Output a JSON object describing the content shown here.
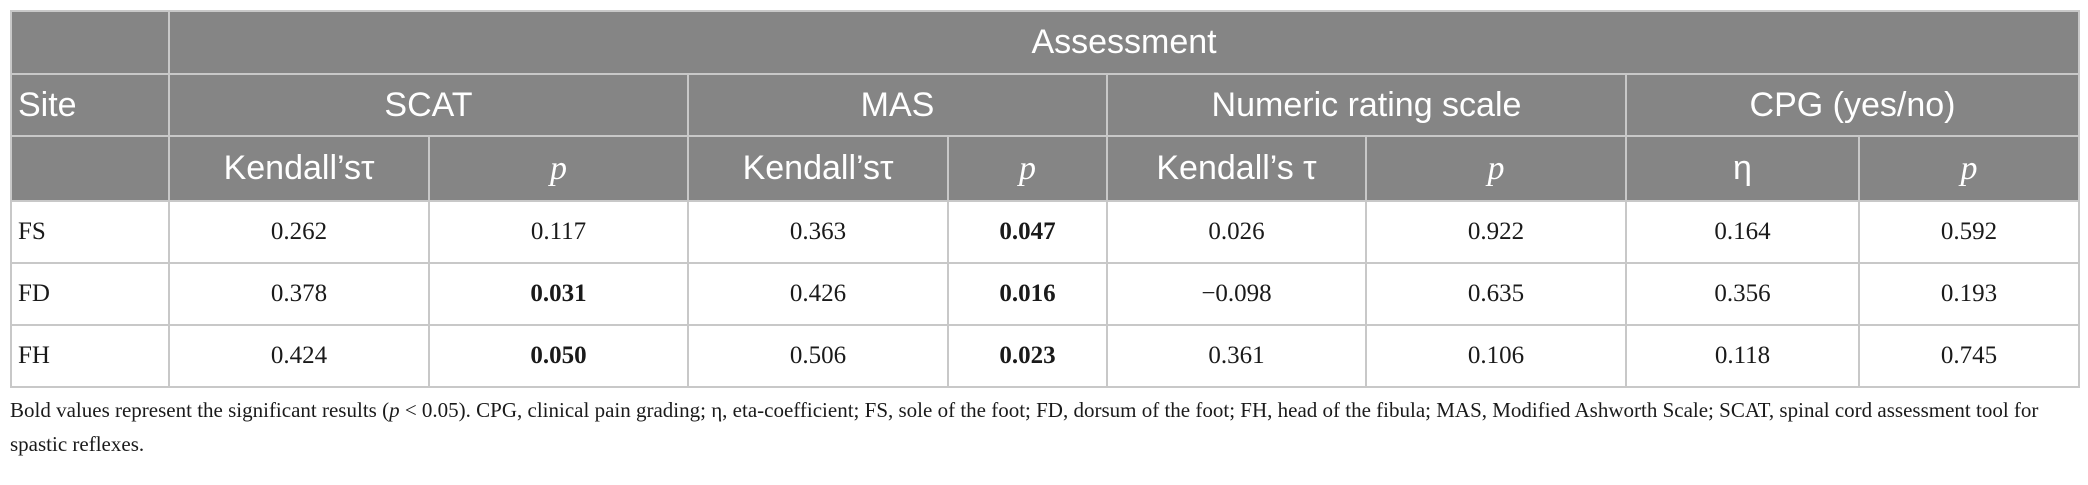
{
  "header": {
    "group_label": "Assessment",
    "site_label": "Site",
    "groups": [
      "SCAT",
      "MAS",
      "Numeric rating scale",
      "CPG (yes/no)"
    ],
    "subheaders": [
      "Kendall’sτ",
      "p",
      "Kendall’sτ",
      "p",
      "Kendall’s τ",
      "p",
      "η",
      "p"
    ]
  },
  "rows": [
    {
      "site": "FS",
      "cells": [
        "0.262",
        "0.117",
        "0.363",
        "0.047",
        "0.026",
        "0.922",
        "0.164",
        "0.592"
      ]
    },
    {
      "site": "FD",
      "cells": [
        "0.378",
        "0.031",
        "0.426",
        "0.016",
        "−0.098",
        "0.635",
        "0.356",
        "0.193"
      ]
    },
    {
      "site": "FH",
      "cells": [
        "0.424",
        "0.050",
        "0.506",
        "0.023",
        "0.361",
        "0.106",
        "0.118",
        "0.745"
      ]
    }
  ],
  "bold_cells": [
    [
      1,
      3
    ],
    [
      2,
      1
    ],
    [
      2,
      3
    ],
    [
      3,
      1
    ],
    [
      3,
      3
    ]
  ],
  "footnote": {
    "part1": "Bold values represent the significant results (",
    "p_symbol": "p",
    "part2": " < 0.05). CPG, clinical pain grading; η, eta-coefficient; FS, sole of the foot; FD, dorsum of the foot; FH, head of the fibula; MAS, Modified Ashworth Scale; SCAT, spinal cord assessment tool for spastic reflexes."
  }
}
